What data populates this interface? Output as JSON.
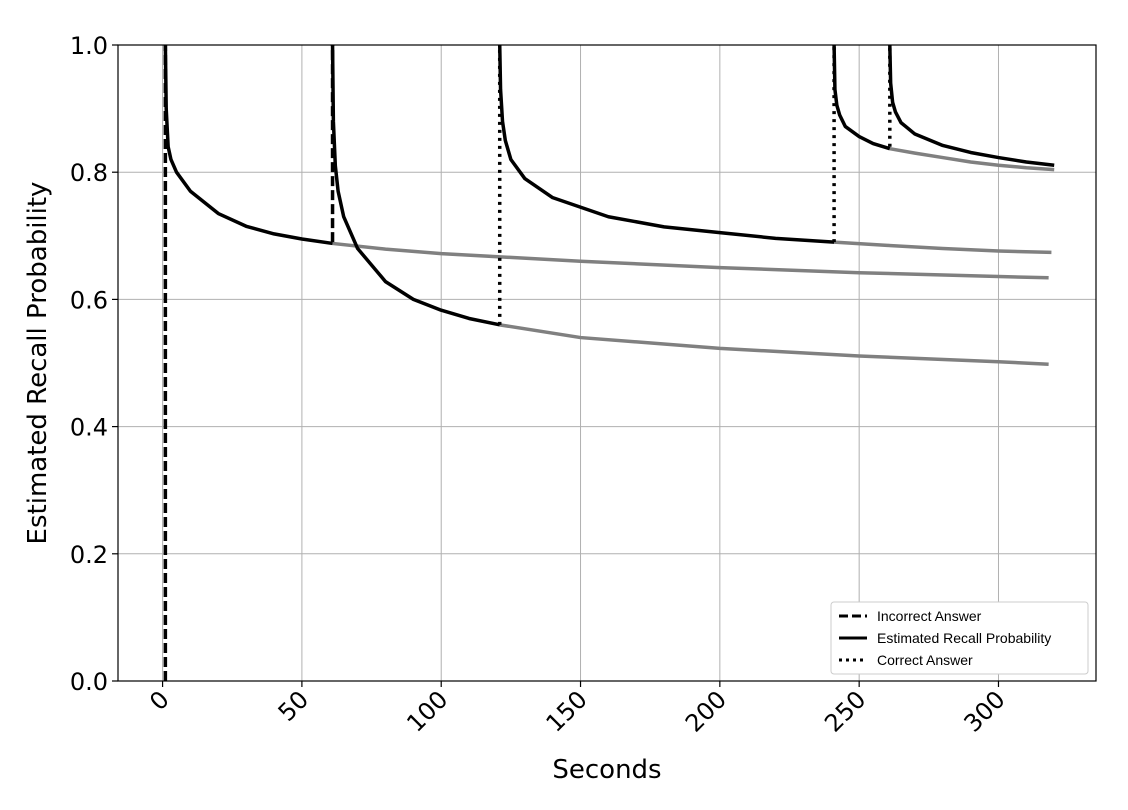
{
  "chart_data": {
    "type": "line",
    "xlabel": "Seconds",
    "ylabel": "Estimated Recall Probability",
    "xlim": [
      -16,
      335
    ],
    "ylim": [
      0.0,
      1.0
    ],
    "grid": true,
    "x_ticks": [
      0,
      50,
      100,
      150,
      200,
      250,
      300
    ],
    "x_tick_labels": [
      "0",
      "50",
      "100",
      "150",
      "200",
      "250",
      "300"
    ],
    "y_ticks": [
      0.0,
      0.2,
      0.4,
      0.6,
      0.8,
      1.0
    ],
    "y_tick_labels": [
      "0.0",
      "0.2",
      "0.4",
      "0.6",
      "0.8",
      "1.0"
    ],
    "legend": {
      "position": "lower-right",
      "entries": [
        {
          "label": "Incorrect Answer",
          "style": "dashed"
        },
        {
          "label": "Estimated Recall Probability",
          "style": "solid"
        },
        {
          "label": "Correct Answer",
          "style": "dotted"
        }
      ]
    },
    "colors": {
      "active": "#000000",
      "projection": "#808080",
      "grid": "#b0b0b0"
    },
    "review_events": [
      {
        "x": 1,
        "kind": "incorrect",
        "from": 0.0,
        "to": 1.0
      },
      {
        "x": 61,
        "kind": "incorrect",
        "from": 0.69,
        "to": 1.0
      },
      {
        "x": 121,
        "kind": "correct",
        "from": 0.56,
        "to": 1.0
      },
      {
        "x": 241,
        "kind": "correct",
        "from": 0.69,
        "to": 1.0
      },
      {
        "x": 261,
        "kind": "correct",
        "from": 0.84,
        "to": 1.0
      }
    ],
    "series": [
      {
        "style": "solid",
        "color": "active",
        "x": [
          1,
          1.3,
          2,
          3,
          5,
          10,
          20,
          30,
          40,
          50,
          61
        ],
        "y": [
          1.0,
          0.9,
          0.84,
          0.82,
          0.8,
          0.77,
          0.735,
          0.715,
          0.703,
          0.695,
          0.688
        ]
      },
      {
        "style": "solid",
        "color": "projection",
        "x": [
          61,
          80,
          100,
          150,
          200,
          250,
          300,
          318
        ],
        "y": [
          0.688,
          0.679,
          0.672,
          0.66,
          0.65,
          0.642,
          0.636,
          0.634
        ]
      },
      {
        "style": "solid",
        "color": "active",
        "x": [
          61,
          61.3,
          62,
          63,
          65,
          70,
          80,
          90,
          100,
          110,
          121
        ],
        "y": [
          1.0,
          0.88,
          0.81,
          0.77,
          0.73,
          0.68,
          0.628,
          0.6,
          0.583,
          0.57,
          0.56
        ]
      },
      {
        "style": "solid",
        "color": "projection",
        "x": [
          121,
          150,
          200,
          250,
          300,
          318
        ],
        "y": [
          0.56,
          0.54,
          0.523,
          0.511,
          0.502,
          0.498
        ]
      },
      {
        "style": "solid",
        "color": "active",
        "x": [
          121,
          121.3,
          122,
          123,
          125,
          130,
          140,
          160,
          180,
          200,
          220,
          241
        ],
        "y": [
          1.0,
          0.93,
          0.88,
          0.85,
          0.82,
          0.79,
          0.76,
          0.73,
          0.714,
          0.705,
          0.696,
          0.69
        ]
      },
      {
        "style": "solid",
        "color": "projection",
        "x": [
          241,
          260,
          280,
          300,
          319
        ],
        "y": [
          0.69,
          0.685,
          0.68,
          0.676,
          0.674
        ]
      },
      {
        "style": "solid",
        "color": "active",
        "x": [
          241,
          241.3,
          242,
          243,
          245,
          250,
          255,
          261
        ],
        "y": [
          1.0,
          0.93,
          0.905,
          0.89,
          0.872,
          0.856,
          0.845,
          0.837
        ]
      },
      {
        "style": "solid",
        "color": "projection",
        "x": [
          261,
          270,
          280,
          290,
          300,
          310,
          320
        ],
        "y": [
          0.837,
          0.83,
          0.823,
          0.816,
          0.811,
          0.807,
          0.804
        ]
      },
      {
        "style": "solid",
        "color": "active",
        "x": [
          261,
          261.3,
          262,
          263,
          265,
          270,
          280,
          290,
          300,
          310,
          320
        ],
        "y": [
          1.0,
          0.94,
          0.91,
          0.895,
          0.878,
          0.86,
          0.842,
          0.831,
          0.823,
          0.816,
          0.811
        ]
      }
    ]
  }
}
